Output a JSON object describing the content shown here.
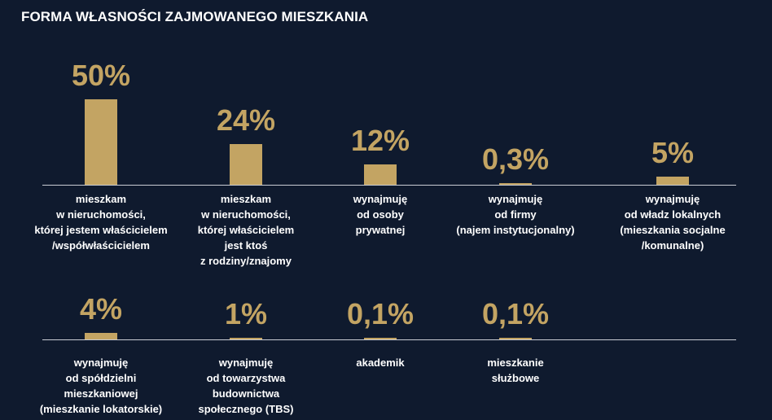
{
  "colors": {
    "background": "#0f1a2e",
    "bar": "#c3a463",
    "text": "#ffffff",
    "baseline": "#c9ccd3"
  },
  "title": "FORMA WŁASNOŚCI ZAJMOWANEGO MIESZKANIA",
  "chart_data": {
    "type": "bar",
    "title": "FORMA WŁASNOŚCI ZAJMOWANEGO MIESZKANIA",
    "unit": "%",
    "categories": [
      [
        "mieszkam",
        "w nieruchomości,",
        "której jestem właścicielem",
        "/współwłaścicielem"
      ],
      [
        "mieszkam",
        "w nieruchomości,",
        "której właścicielem",
        "jest ktoś",
        "z rodziny/znajomy"
      ],
      [
        "wynajmuję",
        "od osoby",
        "prywatnej"
      ],
      [
        "wynajmuję",
        "od firmy",
        "(najem instytucjonalny)"
      ],
      [
        "wynajmuję",
        "od władz lokalnych",
        "(mieszkania socjalne",
        "/komunalne)"
      ],
      [
        "wynajmuję",
        "od spółdzielni",
        "mieszkaniowej",
        "(mieszkanie lokatorskie)"
      ],
      [
        "wynajmuję",
        "od towarzystwa",
        "budownictwa",
        "społecznego (TBS)"
      ],
      [
        "akademik"
      ],
      [
        "mieszkanie",
        "służbowe"
      ]
    ],
    "values": [
      50,
      24,
      12,
      0.3,
      5,
      4,
      1,
      0.1,
      0.1
    ],
    "value_labels": [
      "50%",
      "24%",
      "12%",
      "0,3%",
      "5%",
      "4%",
      "1%",
      "0,1%",
      "0,1%"
    ],
    "layout_rows": [
      [
        0,
        1,
        2,
        3,
        4
      ],
      [
        5,
        6,
        7,
        8
      ]
    ],
    "grid": false,
    "legend": "none"
  }
}
